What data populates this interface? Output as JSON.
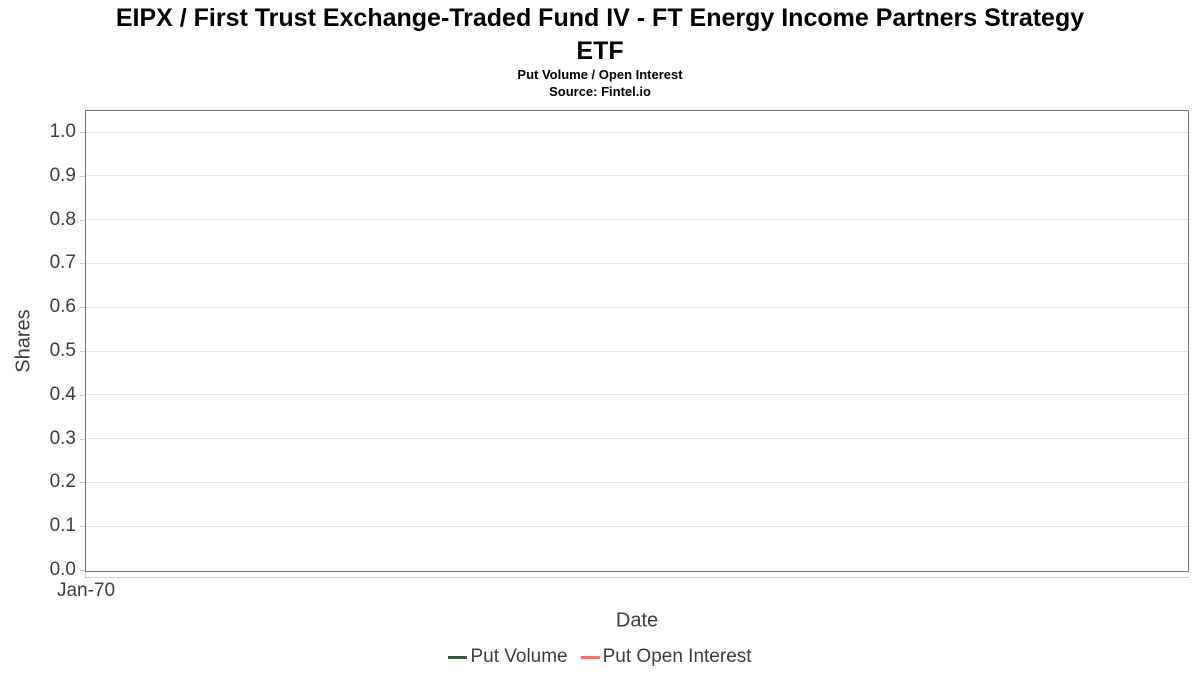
{
  "header": {
    "title_lines": [
      "EIPX / First Trust Exchange-Traded Fund IV - FT Energy Income Partners Strategy",
      "ETF"
    ],
    "subtitle": "Put Volume / Open Interest",
    "source": "Source: Fintel.io"
  },
  "chart_data": {
    "type": "line",
    "title": "EIPX / First Trust Exchange-Traded Fund IV - FT Energy Income Partners Strategy ETF",
    "subtitle": "Put Volume / Open Interest",
    "source_note": "Source: Fintel.io",
    "xlabel": "Date",
    "ylabel": "Shares",
    "ylim": [
      0.0,
      1.05
    ],
    "ytick_labels": [
      "0.0",
      "0.1",
      "0.2",
      "0.3",
      "0.4",
      "0.5",
      "0.6",
      "0.7",
      "0.8",
      "0.9",
      "1.0"
    ],
    "xtick_labels": [
      "Jan-70"
    ],
    "grid": true,
    "legend_position": "bottom",
    "series": [
      {
        "name": "Put Volume",
        "color": "#2a5c3d",
        "x": [],
        "values": []
      },
      {
        "name": "Put Open Interest",
        "color": "#f96b6b",
        "x": [],
        "values": []
      }
    ]
  },
  "colors": {
    "plot_border": "#757575",
    "gridline": "#e6e6e6",
    "tick": "#c9c9c9",
    "axis_text": "#3d3d3d",
    "title_text": "#000000"
  }
}
